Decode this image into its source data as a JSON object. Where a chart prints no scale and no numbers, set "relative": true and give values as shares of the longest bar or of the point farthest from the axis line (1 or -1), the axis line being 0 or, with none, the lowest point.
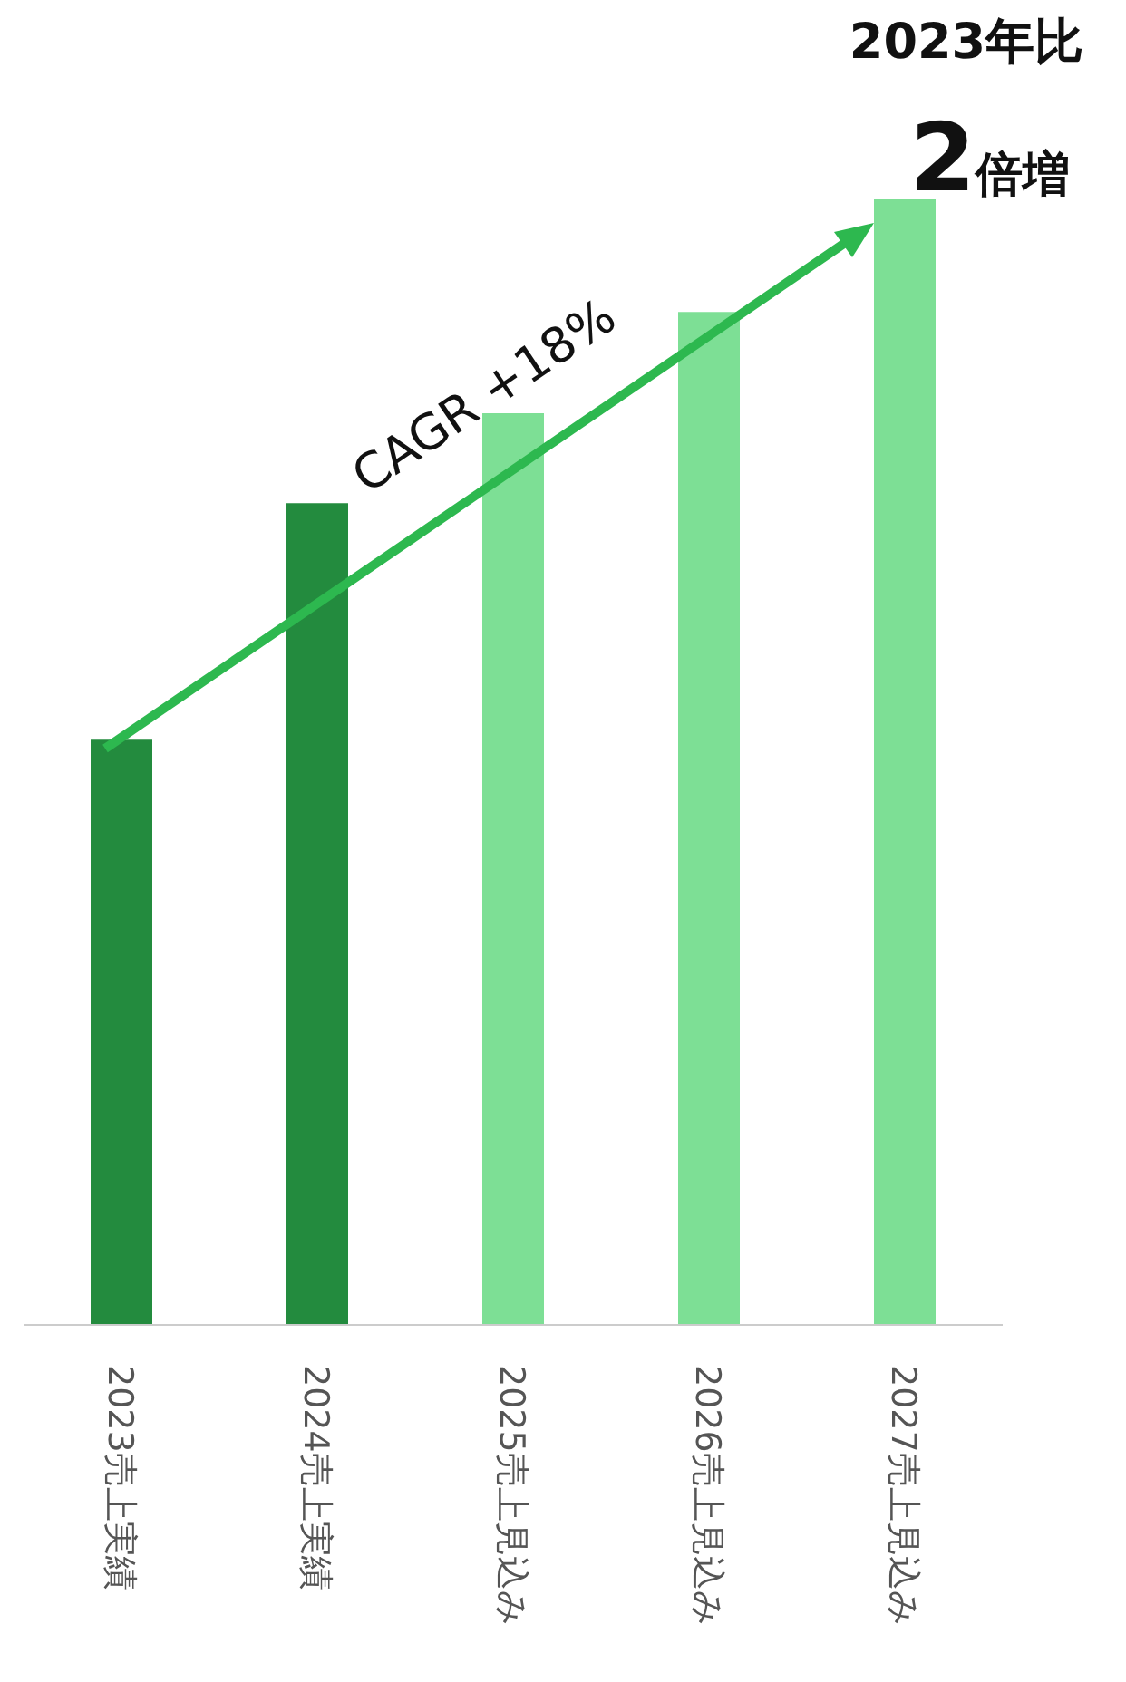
{
  "chart_data": {
    "type": "bar",
    "relative": true,
    "categories": [
      "2023売上実績",
      "2024売上実績",
      "2025売上見込み",
      "2026売上見込み",
      "2027売上見込み"
    ],
    "values": [
      0.52,
      0.73,
      0.81,
      0.9,
      1
    ],
    "colors": [
      "#238b3e",
      "#238b3e",
      "#7ddf95",
      "#7ddf95",
      "#7ddf95"
    ],
    "annotations": [
      "CAGR +18%",
      "2023年比",
      "2倍増"
    ],
    "grid": false,
    "legend": false
  }
}
